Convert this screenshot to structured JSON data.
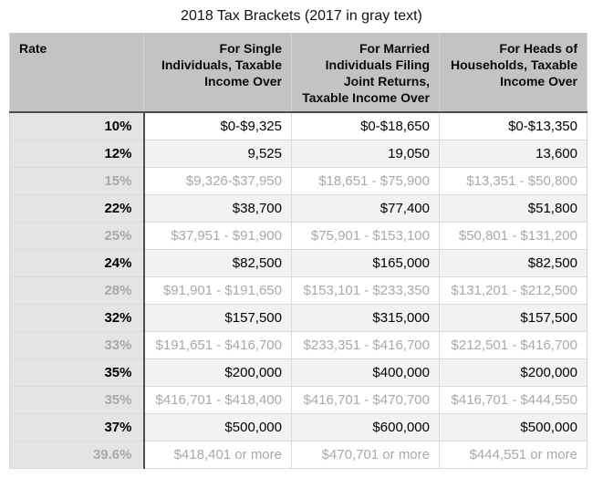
{
  "title": "2018 Tax Brackets (2017 in gray text)",
  "colors": {
    "header_bg": "#c3c3c3",
    "rate_column_bg": "#e4e4e4",
    "alt_row_bg": "#f2f2f2",
    "gray_text_2017": "#a9a9a9",
    "black_text_2018": "#000000",
    "dark_rule": "#4d4d4d",
    "light_rule": "#dadada"
  },
  "chart_data": {
    "type": "table",
    "title": "2018 Tax Brackets (2017 in gray text)",
    "legend_note": "2018 brackets shown in black text; 2017 brackets shown in gray text",
    "columns": [
      "Rate",
      "For Single Individuals, Taxable Income Over",
      "For Married Individuals Filing Joint Returns, Taxable Income Over",
      "For Heads of Households, Taxable Income Over"
    ],
    "rows": [
      {
        "year": "2018",
        "rate": "10%",
        "single": "$0-$9,325",
        "married": "$0-$18,650",
        "hoh": "$0-$13,350"
      },
      {
        "year": "2018",
        "rate": "12%",
        "single": "9,525",
        "married": "19,050",
        "hoh": "13,600"
      },
      {
        "year": "2017",
        "rate": "15%",
        "single": "$9,326-$37,950",
        "married": "$18,651 - $75,900",
        "hoh": "$13,351 - $50,800"
      },
      {
        "year": "2018",
        "rate": "22%",
        "single": "$38,700",
        "married": "$77,400",
        "hoh": "$51,800"
      },
      {
        "year": "2017",
        "rate": "25%",
        "single": "$37,951 - $91,900",
        "married": "$75,901 - $153,100",
        "hoh": "$50,801 - $131,200"
      },
      {
        "year": "2018",
        "rate": "24%",
        "single": "$82,500",
        "married": "$165,000",
        "hoh": "$82,500"
      },
      {
        "year": "2017",
        "rate": "28%",
        "single": "$91,901 - $191,650",
        "married": "$153,101 - $233,350",
        "hoh": "$131,201 - $212,500"
      },
      {
        "year": "2018",
        "rate": "32%",
        "single": "$157,500",
        "married": "$315,000",
        "hoh": "$157,500"
      },
      {
        "year": "2017",
        "rate": "33%",
        "single": "$191,651 - $416,700",
        "married": "$233,351 - $416,700",
        "hoh": "$212,501 - $416,700"
      },
      {
        "year": "2018",
        "rate": "35%",
        "single": "$200,000",
        "married": "$400,000",
        "hoh": "$200,000"
      },
      {
        "year": "2017",
        "rate": "35%",
        "single": "$416,701 - $418,400",
        "married": "$416,701 - $470,700",
        "hoh": "$416,701 - $444,550"
      },
      {
        "year": "2018",
        "rate": "37%",
        "single": "$500,000",
        "married": "$600,000",
        "hoh": "$500,000"
      },
      {
        "year": "2017",
        "rate": "39.6%",
        "single": "$418,401 or more",
        "married": "$470,701 or more",
        "hoh": "$444,551 or more"
      }
    ]
  }
}
